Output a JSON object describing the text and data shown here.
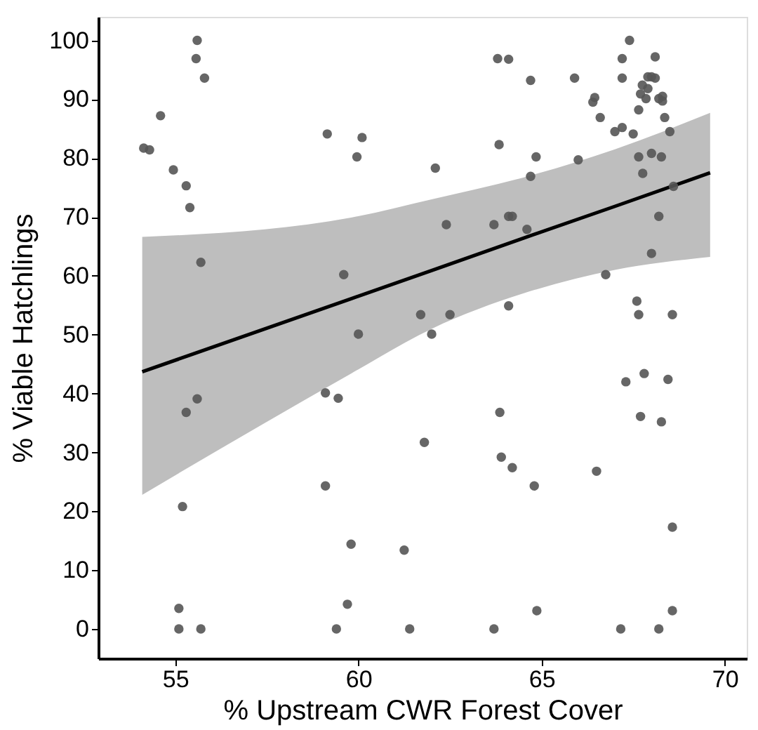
{
  "chart_data": {
    "type": "scatter",
    "xlabel": "% Upstream CWR Forest Cover",
    "ylabel": "% Viable Hatchlings",
    "xlim": [
      52.9,
      70.6
    ],
    "ylim": [
      -5,
      104
    ],
    "xticks": [
      55,
      60,
      65,
      70
    ],
    "yticks": [
      0,
      10,
      20,
      30,
      40,
      50,
      60,
      70,
      80,
      90,
      100
    ],
    "grid": false,
    "series": [
      {
        "type": "line",
        "color": "#000000",
        "line_style": "solid",
        "marker": "none",
        "x": [
          54.1,
          59.8,
          62.0,
          64.5,
          67.0,
          69.6
        ],
        "values": [
          43.7,
          56.1,
          60.9,
          66.4,
          71.8,
          77.5
        ],
        "lower": [
          22.8,
          43.4,
          51.0,
          57.0,
          61.0,
          63.2
        ],
        "upper": [
          66.6,
          69.9,
          73.0,
          76.7,
          81.5,
          87.7
        ]
      },
      {
        "marker": "circle",
        "color": "#555555",
        "x": [
          55.6,
          55.57,
          55.8,
          54.6,
          54.14,
          54.3,
          54.95,
          55.3,
          55.4,
          55.7,
          55.6,
          55.3,
          55.2,
          55.1,
          55.1,
          55.7,
          59.15,
          59.6,
          59.1,
          59.45,
          59.1,
          59.8,
          59.7,
          59.4,
          63.8,
          64.1,
          60.1,
          59.96,
          63.84,
          62.1,
          62.4,
          63.7,
          64.1,
          64.2,
          61.7,
          62.5,
          64.1,
          60.0,
          62.0,
          63.86,
          61.8,
          63.9,
          64.2,
          61.25,
          61.4,
          63.7,
          67.4,
          67.2,
          68.1,
          64.7,
          65.9,
          67.2,
          67.9,
          68.0,
          68.1,
          67.75,
          67.9,
          67.7,
          67.85,
          68.2,
          68.3,
          68.3,
          66.45,
          66.4,
          67.65,
          66.6,
          68.36,
          67.0,
          67.2,
          67.5,
          68.5,
          64.85,
          66.0,
          67.65,
          68.0,
          68.27,
          64.7,
          67.76,
          68.6,
          64.6,
          68.2,
          68.0,
          66.75,
          67.6,
          67.65,
          68.57,
          67.3,
          67.8,
          68.45,
          67.7,
          68.27,
          64.8,
          66.5,
          68.57,
          64.87,
          68.57,
          67.16,
          68.2
        ],
        "values": [
          100,
          96.9,
          93.6,
          87.2,
          81.7,
          81.4,
          78.0,
          75.3,
          71.6,
          62.3,
          39.1,
          36.8,
          20.8,
          3.5,
          0,
          0,
          84.1,
          60.2,
          40.1,
          39.2,
          24.3,
          14.4,
          4.2,
          0,
          96.9,
          96.8,
          83.5,
          80.2,
          82.3,
          78.3,
          68.7,
          68.7,
          70.1,
          70.1,
          53.4,
          53.4,
          54.9,
          50.1,
          50.1,
          36.8,
          31.7,
          29.2,
          27.4,
          13.4,
          0,
          0,
          100,
          96.9,
          97.2,
          93.2,
          93.6,
          93.6,
          93.8,
          93.8,
          93.6,
          92.4,
          91.8,
          90.9,
          90.1,
          90.1,
          90.5,
          89.7,
          90.3,
          89.5,
          88.2,
          86.9,
          86.9,
          84.5,
          85.2,
          84.1,
          84.5,
          80.2,
          79.7,
          80.2,
          80.8,
          80.2,
          76.9,
          77.4,
          75.2,
          67.9,
          70.1,
          63.8,
          60.2,
          55.7,
          53.4,
          53.4,
          42.0,
          43.4,
          42.4,
          36.1,
          35.2,
          24.3,
          26.8,
          17.3,
          3.1,
          3.1,
          0,
          0
        ]
      }
    ]
  }
}
